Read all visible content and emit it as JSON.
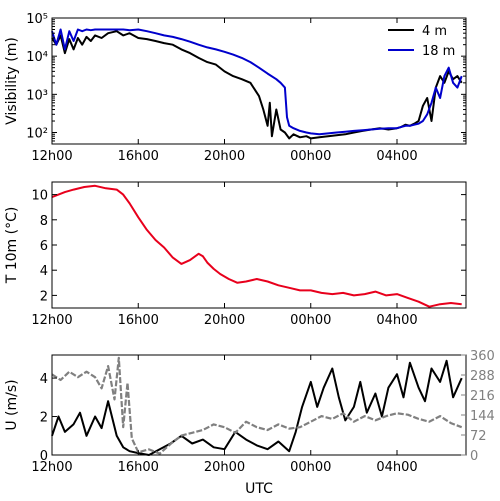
{
  "chart_data": [
    {
      "type": "line",
      "ylabel": "Visibility (m)",
      "yscale": "log",
      "ylim": [
        50,
        100000
      ],
      "xlim": [
        12,
        31.2
      ],
      "x_ticks": [
        12,
        16,
        20,
        24,
        28
      ],
      "x_tick_labels": [
        "12h00",
        "16h00",
        "20h00",
        "00h00",
        "04h00"
      ],
      "y_ticks": [
        100,
        1000,
        10000,
        100000
      ],
      "y_tick_labels": [
        "10²",
        "10³",
        "10⁴",
        "10⁵"
      ],
      "legend_position": "top-right",
      "series": [
        {
          "name": "4 m",
          "color": "#000000",
          "x": [
            12.0,
            12.2,
            12.4,
            12.6,
            12.8,
            13.0,
            13.2,
            13.4,
            13.6,
            13.8,
            14.0,
            14.3,
            14.6,
            15.0,
            15.3,
            15.6,
            16.0,
            16.4,
            16.8,
            17.2,
            17.6,
            18.0,
            18.4,
            18.8,
            19.2,
            19.6,
            20.0,
            20.4,
            20.8,
            21.2,
            21.6,
            21.8,
            22.0,
            22.1,
            22.2,
            22.4,
            22.6,
            22.8,
            23.0,
            23.2,
            23.5,
            23.8,
            24.0,
            24.4,
            24.8,
            25.2,
            25.6,
            26.0,
            26.4,
            26.8,
            27.2,
            27.6,
            28.0,
            28.2,
            28.4,
            28.6,
            28.8,
            29.0,
            29.2,
            29.4,
            29.6,
            29.8,
            30.0,
            30.2,
            30.4,
            30.6,
            30.8,
            31.0
          ],
          "y": [
            30000,
            20000,
            35000,
            12000,
            28000,
            15000,
            30000,
            20000,
            32000,
            25000,
            35000,
            30000,
            40000,
            45000,
            35000,
            40000,
            30000,
            28000,
            25000,
            22000,
            20000,
            15000,
            12000,
            9000,
            7000,
            6000,
            4000,
            3000,
            2500,
            2000,
            900,
            400,
            150,
            600,
            80,
            400,
            120,
            100,
            70,
            90,
            75,
            80,
            70,
            75,
            80,
            85,
            90,
            100,
            110,
            120,
            130,
            120,
            130,
            140,
            160,
            150,
            170,
            200,
            500,
            800,
            200,
            1500,
            3000,
            2000,
            4000,
            2500,
            3000,
            2000
          ]
        },
        {
          "name": "18 m",
          "color": "#0000cc",
          "x": [
            12.0,
            12.2,
            12.4,
            12.6,
            12.8,
            13.0,
            13.2,
            13.4,
            13.6,
            13.8,
            14.0,
            14.3,
            14.6,
            15.0,
            15.3,
            15.6,
            16.0,
            16.4,
            16.8,
            17.2,
            17.6,
            18.0,
            18.4,
            18.8,
            19.2,
            19.6,
            20.0,
            20.4,
            20.8,
            21.2,
            21.6,
            22.0,
            22.4,
            22.6,
            22.8,
            22.9,
            23.0,
            23.2,
            23.5,
            23.8,
            24.0,
            24.4,
            24.8,
            25.2,
            25.6,
            26.0,
            26.4,
            26.8,
            27.2,
            27.6,
            28.0,
            28.2,
            28.4,
            28.6,
            28.8,
            29.0,
            29.2,
            29.4,
            29.6,
            29.8,
            30.0,
            30.2,
            30.4,
            30.6,
            30.8,
            31.0
          ],
          "y": [
            45000,
            20000,
            50000,
            15000,
            45000,
            25000,
            50000,
            45000,
            50000,
            48000,
            50000,
            50000,
            50000,
            50000,
            50000,
            48000,
            50000,
            45000,
            40000,
            35000,
            32000,
            28000,
            24000,
            20000,
            17000,
            15000,
            13000,
            11000,
            9000,
            7000,
            5000,
            3500,
            2500,
            2000,
            1500,
            250,
            150,
            130,
            110,
            100,
            95,
            90,
            95,
            100,
            105,
            110,
            115,
            120,
            125,
            130,
            130,
            140,
            150,
            150,
            160,
            170,
            200,
            300,
            600,
            1500,
            800,
            3000,
            5000,
            2000,
            1500,
            3000
          ]
        }
      ]
    },
    {
      "type": "line",
      "ylabel": "T 10m (°C)",
      "ylim": [
        1,
        11
      ],
      "xlim": [
        12,
        31.2
      ],
      "x_ticks": [
        12,
        16,
        20,
        24,
        28
      ],
      "x_tick_labels": [
        "12h00",
        "16h00",
        "20h00",
        "00h00",
        "04h00"
      ],
      "y_ticks": [
        2,
        4,
        6,
        8,
        10
      ],
      "y_tick_labels": [
        "2",
        "4",
        "6",
        "8",
        "10"
      ],
      "series": [
        {
          "color": "#e8001c",
          "x": [
            12.0,
            12.3,
            12.6,
            13.0,
            13.5,
            14.0,
            14.5,
            15.0,
            15.3,
            15.6,
            16.0,
            16.4,
            16.8,
            17.2,
            17.6,
            18.0,
            18.4,
            18.8,
            19.0,
            19.2,
            19.5,
            19.8,
            20.2,
            20.6,
            21.0,
            21.5,
            22.0,
            22.5,
            23.0,
            23.5,
            24.0,
            24.5,
            25.0,
            25.5,
            26.0,
            26.5,
            27.0,
            27.5,
            28.0,
            28.5,
            29.0,
            29.5,
            30.0,
            30.5,
            31.0
          ],
          "y": [
            9.8,
            10.0,
            10.2,
            10.4,
            10.6,
            10.7,
            10.5,
            10.4,
            10.0,
            9.3,
            8.2,
            7.2,
            6.4,
            5.8,
            5.0,
            4.5,
            4.8,
            5.3,
            5.1,
            4.6,
            4.1,
            3.7,
            3.3,
            3.0,
            3.1,
            3.3,
            3.1,
            2.8,
            2.6,
            2.4,
            2.4,
            2.2,
            2.1,
            2.2,
            2.0,
            2.1,
            2.3,
            2.0,
            2.1,
            1.8,
            1.5,
            1.1,
            1.3,
            1.4,
            1.3
          ]
        }
      ]
    },
    {
      "type": "line",
      "ylabel": "U (m/s)",
      "xlabel": "UTC",
      "ylim": [
        0,
        5.2
      ],
      "xlim": [
        12,
        31.2
      ],
      "x_ticks": [
        12,
        16,
        20,
        24,
        28
      ],
      "x_tick_labels": [
        "12h00",
        "16h00",
        "20h00",
        "00h00",
        "04h00"
      ],
      "y_ticks": [
        0,
        2,
        4
      ],
      "y_tick_labels": [
        "0",
        "2",
        "4"
      ],
      "y2lim": [
        0,
        360
      ],
      "y2_ticks": [
        0,
        72,
        144,
        216,
        288,
        360
      ],
      "y2_tick_labels": [
        "0",
        "72",
        "144",
        "216",
        "288",
        "360"
      ],
      "series": [
        {
          "color": "#000000",
          "axis": "left",
          "x": [
            12.0,
            12.3,
            12.6,
            13.0,
            13.3,
            13.6,
            14.0,
            14.3,
            14.6,
            15.0,
            15.3,
            15.6,
            16.0,
            16.5,
            17.0,
            17.5,
            18.0,
            18.5,
            19.0,
            19.5,
            20.0,
            20.5,
            21.0,
            21.5,
            22.0,
            22.5,
            23.0,
            23.3,
            23.6,
            24.0,
            24.3,
            24.6,
            25.0,
            25.3,
            25.6,
            26.0,
            26.3,
            26.6,
            27.0,
            27.3,
            27.6,
            28.0,
            28.3,
            28.6,
            29.0,
            29.3,
            29.6,
            30.0,
            30.3,
            30.6,
            31.0
          ],
          "y": [
            1.0,
            2.0,
            1.2,
            1.6,
            2.2,
            1.0,
            2.0,
            1.4,
            2.8,
            1.0,
            0.4,
            0.2,
            0.1,
            0.0,
            0.3,
            0.6,
            1.0,
            0.6,
            0.8,
            0.4,
            0.3,
            1.2,
            0.8,
            0.5,
            0.3,
            0.7,
            0.2,
            1.2,
            2.5,
            3.8,
            2.5,
            3.5,
            4.5,
            3.0,
            1.8,
            2.5,
            3.8,
            2.2,
            3.2,
            2.0,
            3.5,
            4.2,
            3.0,
            4.8,
            3.5,
            2.8,
            4.5,
            3.8,
            4.9,
            3.0,
            4.0
          ]
        },
        {
          "color": "#808080",
          "axis": "right",
          "x": [
            12.0,
            12.4,
            12.8,
            13.2,
            13.6,
            14.0,
            14.3,
            14.6,
            14.9,
            15.1,
            15.3,
            15.5,
            15.7,
            16.0,
            16.5,
            17.0,
            17.5,
            18.0,
            18.5,
            19.0,
            19.5,
            20.0,
            20.5,
            21.0,
            21.5,
            22.0,
            22.5,
            23.0,
            23.5,
            24.0,
            24.5,
            25.0,
            25.5,
            26.0,
            26.5,
            27.0,
            27.5,
            28.0,
            28.5,
            29.0,
            29.5,
            30.0,
            30.5,
            31.0
          ],
          "y": [
            290,
            270,
            300,
            280,
            300,
            280,
            240,
            320,
            200,
            350,
            100,
            260,
            60,
            10,
            20,
            5,
            40,
            70,
            80,
            90,
            110,
            100,
            80,
            120,
            100,
            90,
            110,
            95,
            100,
            120,
            140,
            130,
            150,
            120,
            140,
            125,
            140,
            150,
            145,
            130,
            120,
            140,
            115,
            100
          ]
        }
      ]
    }
  ]
}
